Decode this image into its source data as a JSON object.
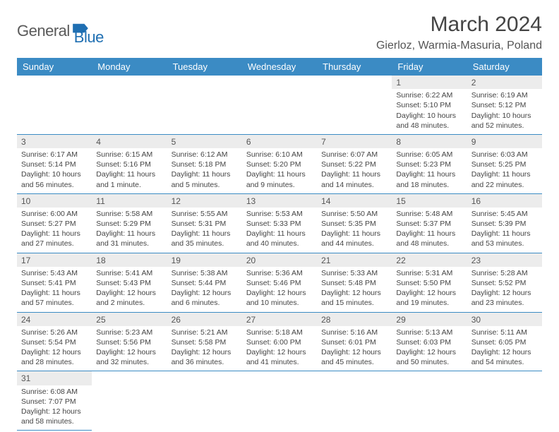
{
  "logo": {
    "text1": "General",
    "text2": "Blue",
    "color1": "#5a5a5a",
    "color2": "#1f6fb2"
  },
  "title": "March 2024",
  "location": "Gierloz, Warmia-Masuria, Poland",
  "weekday_header_bg": "#3b8bc4",
  "weekdays": [
    "Sunday",
    "Monday",
    "Tuesday",
    "Wednesday",
    "Thursday",
    "Friday",
    "Saturday"
  ],
  "day_bg": "#ececec",
  "border_color": "#3b8bc4",
  "days": {
    "1": {
      "sr": "6:22 AM",
      "ss": "5:10 PM",
      "dl": "10 hours and 48 minutes."
    },
    "2": {
      "sr": "6:19 AM",
      "ss": "5:12 PM",
      "dl": "10 hours and 52 minutes."
    },
    "3": {
      "sr": "6:17 AM",
      "ss": "5:14 PM",
      "dl": "10 hours and 56 minutes."
    },
    "4": {
      "sr": "6:15 AM",
      "ss": "5:16 PM",
      "dl": "11 hours and 1 minute."
    },
    "5": {
      "sr": "6:12 AM",
      "ss": "5:18 PM",
      "dl": "11 hours and 5 minutes."
    },
    "6": {
      "sr": "6:10 AM",
      "ss": "5:20 PM",
      "dl": "11 hours and 9 minutes."
    },
    "7": {
      "sr": "6:07 AM",
      "ss": "5:22 PM",
      "dl": "11 hours and 14 minutes."
    },
    "8": {
      "sr": "6:05 AM",
      "ss": "5:23 PM",
      "dl": "11 hours and 18 minutes."
    },
    "9": {
      "sr": "6:03 AM",
      "ss": "5:25 PM",
      "dl": "11 hours and 22 minutes."
    },
    "10": {
      "sr": "6:00 AM",
      "ss": "5:27 PM",
      "dl": "11 hours and 27 minutes."
    },
    "11": {
      "sr": "5:58 AM",
      "ss": "5:29 PM",
      "dl": "11 hours and 31 minutes."
    },
    "12": {
      "sr": "5:55 AM",
      "ss": "5:31 PM",
      "dl": "11 hours and 35 minutes."
    },
    "13": {
      "sr": "5:53 AM",
      "ss": "5:33 PM",
      "dl": "11 hours and 40 minutes."
    },
    "14": {
      "sr": "5:50 AM",
      "ss": "5:35 PM",
      "dl": "11 hours and 44 minutes."
    },
    "15": {
      "sr": "5:48 AM",
      "ss": "5:37 PM",
      "dl": "11 hours and 48 minutes."
    },
    "16": {
      "sr": "5:45 AM",
      "ss": "5:39 PM",
      "dl": "11 hours and 53 minutes."
    },
    "17": {
      "sr": "5:43 AM",
      "ss": "5:41 PM",
      "dl": "11 hours and 57 minutes."
    },
    "18": {
      "sr": "5:41 AM",
      "ss": "5:43 PM",
      "dl": "12 hours and 2 minutes."
    },
    "19": {
      "sr": "5:38 AM",
      "ss": "5:44 PM",
      "dl": "12 hours and 6 minutes."
    },
    "20": {
      "sr": "5:36 AM",
      "ss": "5:46 PM",
      "dl": "12 hours and 10 minutes."
    },
    "21": {
      "sr": "5:33 AM",
      "ss": "5:48 PM",
      "dl": "12 hours and 15 minutes."
    },
    "22": {
      "sr": "5:31 AM",
      "ss": "5:50 PM",
      "dl": "12 hours and 19 minutes."
    },
    "23": {
      "sr": "5:28 AM",
      "ss": "5:52 PM",
      "dl": "12 hours and 23 minutes."
    },
    "24": {
      "sr": "5:26 AM",
      "ss": "5:54 PM",
      "dl": "12 hours and 28 minutes."
    },
    "25": {
      "sr": "5:23 AM",
      "ss": "5:56 PM",
      "dl": "12 hours and 32 minutes."
    },
    "26": {
      "sr": "5:21 AM",
      "ss": "5:58 PM",
      "dl": "12 hours and 36 minutes."
    },
    "27": {
      "sr": "5:18 AM",
      "ss": "6:00 PM",
      "dl": "12 hours and 41 minutes."
    },
    "28": {
      "sr": "5:16 AM",
      "ss": "6:01 PM",
      "dl": "12 hours and 45 minutes."
    },
    "29": {
      "sr": "5:13 AM",
      "ss": "6:03 PM",
      "dl": "12 hours and 50 minutes."
    },
    "30": {
      "sr": "5:11 AM",
      "ss": "6:05 PM",
      "dl": "12 hours and 54 minutes."
    },
    "31": {
      "sr": "6:08 AM",
      "ss": "7:07 PM",
      "dl": "12 hours and 58 minutes."
    }
  },
  "labels": {
    "sunrise": "Sunrise:",
    "sunset": "Sunset:",
    "daylight": "Daylight:"
  },
  "grid": [
    [
      null,
      null,
      null,
      null,
      null,
      "1",
      "2"
    ],
    [
      "3",
      "4",
      "5",
      "6",
      "7",
      "8",
      "9"
    ],
    [
      "10",
      "11",
      "12",
      "13",
      "14",
      "15",
      "16"
    ],
    [
      "17",
      "18",
      "19",
      "20",
      "21",
      "22",
      "23"
    ],
    [
      "24",
      "25",
      "26",
      "27",
      "28",
      "29",
      "30"
    ],
    [
      "31",
      null,
      null,
      null,
      null,
      null,
      null
    ]
  ]
}
